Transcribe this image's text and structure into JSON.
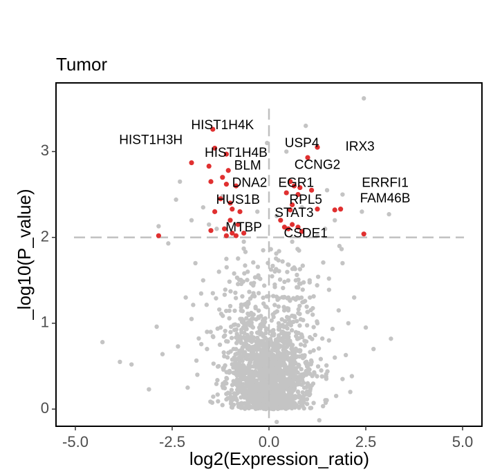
{
  "chart_data": {
    "type": "scatter",
    "title": "Tumor",
    "xlabel": "log2(Expression_ratio)",
    "ylabel": "_log10(P_value)",
    "xlim": [
      -5.5,
      5.5
    ],
    "ylim": [
      -0.2,
      3.8
    ],
    "x_ticks": [
      -5.0,
      -2.5,
      0.0,
      2.5,
      5.0
    ],
    "x_tick_labels": [
      "-5.0",
      "-2.5",
      "0.0",
      "2.5",
      "5.0"
    ],
    "y_ticks": [
      0,
      1,
      2,
      3
    ],
    "y_tick_labels": [
      "0",
      "1",
      "2",
      "3"
    ],
    "threshold_lines": {
      "x": 0,
      "y": 2
    },
    "grid": false,
    "colors": {
      "significant": "#e03030",
      "background": "#c4c4c4",
      "threshold": "#c0c0c0"
    },
    "background_points": [
      [
        2.45,
        3.62
      ],
      [
        3.1,
        2.27
      ],
      [
        3.15,
        0.82
      ],
      [
        -4.3,
        0.78
      ],
      [
        -3.85,
        0.55
      ],
      [
        -3.55,
        0.52
      ],
      [
        -2.9,
        0.96
      ],
      [
        -2.75,
        0.64
      ],
      [
        -2.35,
        0.73
      ],
      [
        -2.15,
        1.3
      ],
      [
        -2.0,
        2.2
      ],
      [
        -2.3,
        2.65
      ],
      [
        -2.4,
        2.44
      ],
      [
        -1.7,
        2.35
      ],
      [
        -1.55,
        2.15
      ],
      [
        -1.35,
        2.1
      ],
      [
        -1.9,
        1.7
      ],
      [
        -2.6,
        1.93
      ],
      [
        -1.7,
        1.5
      ],
      [
        1.9,
        1.7
      ],
      [
        1.55,
        1.52
      ],
      [
        2.2,
        1.3
      ],
      [
        2.5,
        0.95
      ],
      [
        1.7,
        2.2
      ],
      [
        1.9,
        2.5
      ],
      [
        2.7,
        0.7
      ],
      [
        -3.1,
        0.23
      ],
      [
        1.45,
        2.1
      ],
      [
        -0.9,
        1.58
      ],
      [
        0.8,
        1.63
      ],
      [
        -2.85,
        2.13
      ],
      [
        -1.6,
        0.9
      ],
      [
        2.05,
        1.0
      ],
      [
        -1.2,
        2.48
      ],
      [
        0.45,
        3.0
      ],
      [
        0.95,
        3.3
      ],
      [
        1.5,
        2.55
      ],
      [
        1.25,
        2.02
      ],
      [
        -0.05,
        3.1
      ],
      [
        2.4,
        2.3
      ],
      [
        1.3,
        -0.13
      ],
      [
        0.2,
        -0.15
      ],
      [
        -0.25,
        0.07
      ],
      [
        0.15,
        0.1
      ],
      [
        -0.6,
        0.18
      ],
      [
        0.5,
        0.14
      ],
      [
        -0.8,
        0.22
      ],
      [
        0.75,
        0.2
      ],
      [
        -0.4,
        0.33
      ],
      [
        0.3,
        0.3
      ],
      [
        -1.1,
        0.3
      ],
      [
        1.0,
        0.3
      ],
      [
        -0.15,
        0.45
      ],
      [
        0.6,
        0.42
      ],
      [
        -0.7,
        0.45
      ],
      [
        0.1,
        0.55
      ],
      [
        -0.35,
        0.6
      ],
      [
        0.4,
        0.65
      ],
      [
        -0.9,
        0.6
      ],
      [
        1.1,
        0.55
      ],
      [
        -1.3,
        0.5
      ],
      [
        1.35,
        0.45
      ],
      [
        0.05,
        0.75
      ],
      [
        -0.5,
        0.8
      ],
      [
        0.7,
        0.85
      ],
      [
        -0.25,
        0.95
      ],
      [
        0.25,
        1.0
      ],
      [
        -0.7,
        1.05
      ],
      [
        0.5,
        1.15
      ],
      [
        -1.0,
        1.2
      ],
      [
        0.9,
        1.25
      ],
      [
        -0.4,
        1.35
      ],
      [
        0.15,
        1.45
      ],
      [
        -1.25,
        0.95
      ],
      [
        1.25,
        1.0
      ],
      [
        -0.55,
        1.6
      ],
      [
        0.35,
        1.72
      ],
      [
        -0.15,
        1.85
      ],
      [
        0.6,
        1.95
      ],
      [
        -1.45,
        1.35
      ],
      [
        1.55,
        0.8
      ],
      [
        -1.6,
        0.7
      ],
      [
        1.7,
        0.6
      ],
      [
        -1.85,
        0.4
      ],
      [
        1.9,
        0.35
      ],
      [
        -2.1,
        0.25
      ],
      [
        2.1,
        0.2
      ],
      [
        -0.95,
        0.05
      ],
      [
        0.9,
        0.08
      ],
      [
        -0.05,
        0.25
      ],
      [
        0.55,
        0.55
      ],
      [
        -0.45,
        1.1
      ],
      [
        1.05,
        1.5
      ],
      [
        -1.1,
        1.75
      ],
      [
        0.2,
        2.25
      ],
      [
        -0.3,
        2.3
      ],
      [
        0.85,
        2.35
      ],
      [
        -0.65,
        1.95
      ],
      [
        1.8,
        1.15
      ],
      [
        -2.0,
        1.05
      ]
    ],
    "significant_points": [
      [
        -1.45,
        3.26
      ],
      [
        -2.0,
        2.87
      ],
      [
        -1.55,
        2.83
      ],
      [
        -1.4,
        3.04
      ],
      [
        -1.1,
        2.97
      ],
      [
        -1.05,
        2.78
      ],
      [
        -1.2,
        2.7
      ],
      [
        -1.5,
        2.65
      ],
      [
        -0.85,
        2.6
      ],
      [
        -1.1,
        2.62
      ],
      [
        -1.0,
        2.4
      ],
      [
        -0.95,
        2.33
      ],
      [
        -1.25,
        2.45
      ],
      [
        -0.75,
        2.3
      ],
      [
        -1.4,
        2.3
      ],
      [
        -0.8,
        2.15
      ],
      [
        -1.0,
        2.2
      ],
      [
        -1.15,
        2.1
      ],
      [
        -0.65,
        2.05
      ],
      [
        -1.5,
        2.08
      ],
      [
        -0.95,
        2.05
      ],
      [
        -2.85,
        2.02
      ],
      [
        -1.1,
        2.02
      ],
      [
        -0.85,
        2.02
      ],
      [
        1.25,
        3.05
      ],
      [
        1.0,
        2.93
      ],
      [
        0.55,
        2.65
      ],
      [
        0.65,
        2.6
      ],
      [
        0.8,
        2.58
      ],
      [
        0.45,
        2.52
      ],
      [
        0.75,
        2.5
      ],
      [
        1.1,
        2.55
      ],
      [
        0.6,
        2.38
      ],
      [
        0.55,
        2.32
      ],
      [
        1.25,
        2.33
      ],
      [
        0.3,
        2.2
      ],
      [
        0.4,
        2.12
      ],
      [
        0.5,
        2.1
      ],
      [
        0.6,
        2.15
      ],
      [
        0.75,
        2.12
      ],
      [
        0.85,
        2.07
      ],
      [
        1.7,
        2.32
      ],
      [
        1.85,
        2.33
      ],
      [
        2.45,
        2.04
      ]
    ],
    "annotations": [
      {
        "text": "HIST1H4K",
        "x": -1.2,
        "y": 3.3
      },
      {
        "text": "HIST1H3H",
        "x": -3.05,
        "y": 3.13
      },
      {
        "text": "USP4",
        "x": 0.85,
        "y": 3.09
      },
      {
        "text": "IRX3",
        "x": 2.35,
        "y": 3.05
      },
      {
        "text": "HIST1H4B",
        "x": -0.85,
        "y": 2.98
      },
      {
        "text": "BLM",
        "x": -0.55,
        "y": 2.83
      },
      {
        "text": "CCNG2",
        "x": 1.25,
        "y": 2.84
      },
      {
        "text": "DNA2",
        "x": -0.5,
        "y": 2.63
      },
      {
        "text": "EGR1",
        "x": 0.7,
        "y": 2.63
      },
      {
        "text": "ERRFI1",
        "x": 3.0,
        "y": 2.63
      },
      {
        "text": "FAM46B",
        "x": 3.0,
        "y": 2.45
      },
      {
        "text": "HUS1B",
        "x": -0.8,
        "y": 2.43
      },
      {
        "text": "RPL5",
        "x": 0.95,
        "y": 2.43
      },
      {
        "text": "STAT3",
        "x": 0.65,
        "y": 2.28
      },
      {
        "text": "MTBP",
        "x": -0.65,
        "y": 2.11
      },
      {
        "text": "CSDE1",
        "x": 0.95,
        "y": 2.04
      }
    ]
  }
}
